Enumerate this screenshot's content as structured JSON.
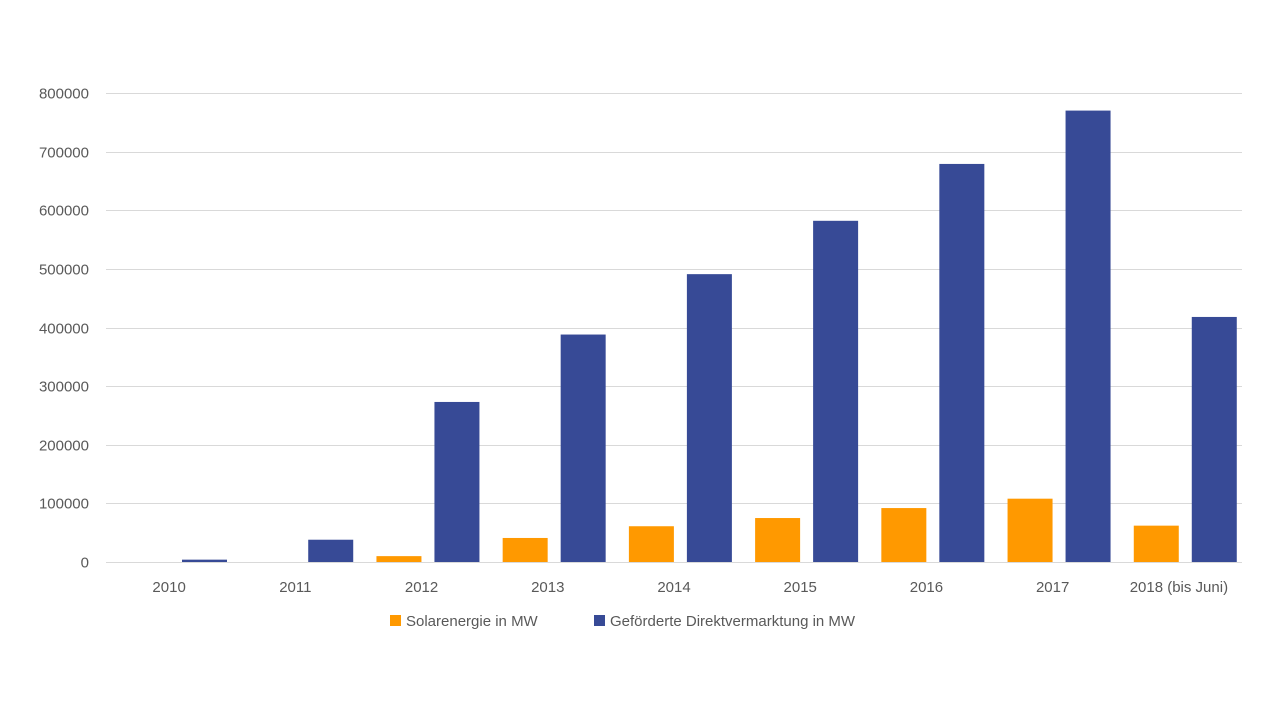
{
  "chart_data": {
    "type": "bar",
    "categories": [
      "2010",
      "2011",
      "2012",
      "2013",
      "2014",
      "2015",
      "2016",
      "2017",
      "2018 (bis Juni)"
    ],
    "series": [
      {
        "name": "Solarenergie in MW",
        "color": "#FF9900",
        "values": [
          0,
          0,
          10000,
          41000,
          61000,
          75000,
          92000,
          108000,
          62000
        ]
      },
      {
        "name": "Geförderte Direktvermarktung in MW",
        "color": "#374A96",
        "values": [
          4000,
          38000,
          273000,
          388000,
          491000,
          582000,
          679000,
          770000,
          418000
        ]
      }
    ],
    "title": "",
    "xlabel": "",
    "ylabel": "",
    "ylim": [
      0,
      800000
    ],
    "yticks": [
      "0",
      "100000",
      "200000",
      "300000",
      "400000",
      "500000",
      "600000",
      "700000",
      "800000"
    ],
    "grid": true,
    "legend_position": "bottom"
  }
}
